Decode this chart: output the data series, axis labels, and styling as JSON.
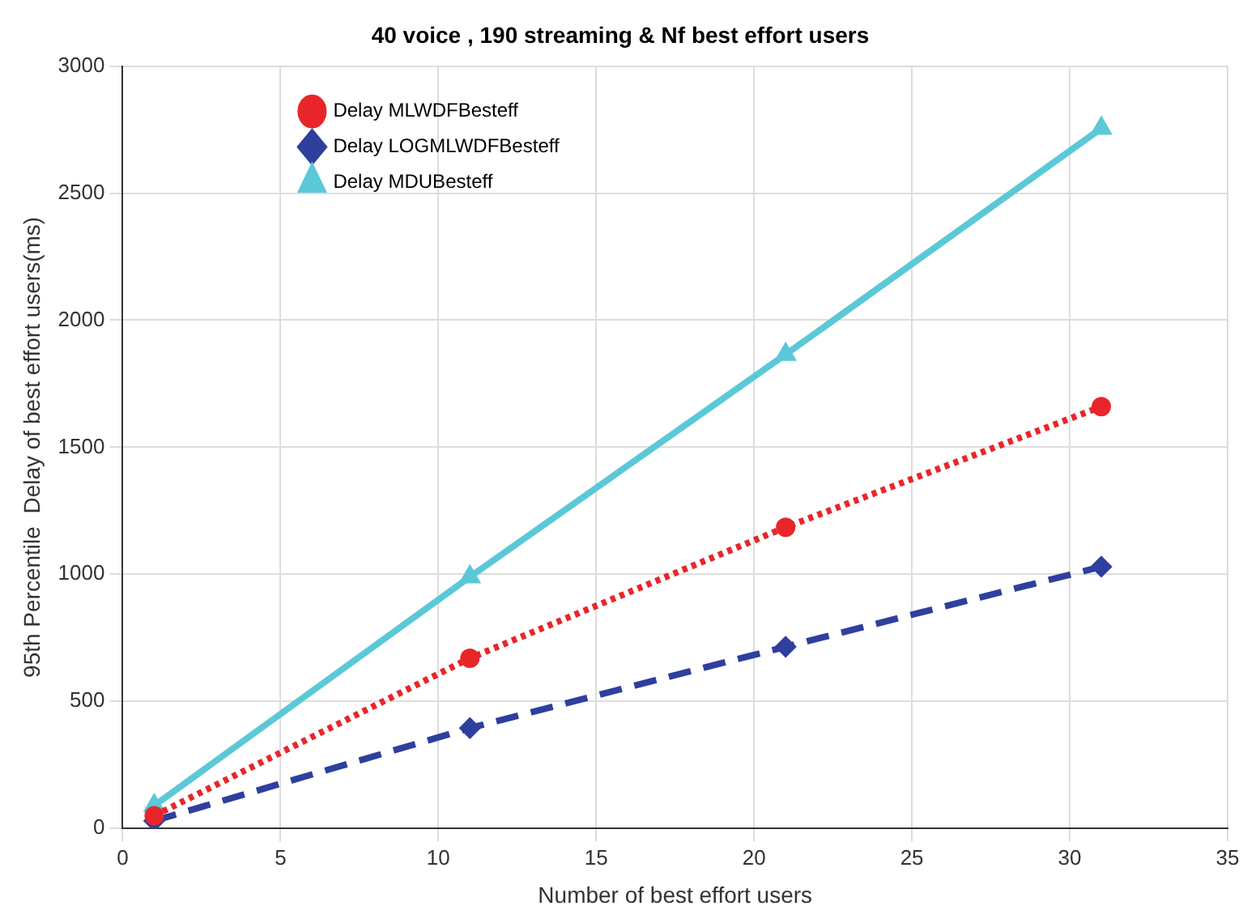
{
  "chart_data": {
    "type": "line",
    "title": "40 voice , 190 streaming & Nf best effort users",
    "xlabel": "Number of best effort users",
    "ylabel": "95th Percentile  Delay of best effort users(ms)",
    "x": [
      1,
      11,
      21,
      31
    ],
    "series": [
      {
        "name": "Delay MLWDFBesteff",
        "color": "#e8262a",
        "values": [
          50,
          670,
          1185,
          1660
        ],
        "marker": "circle",
        "line_style": "dotted"
      },
      {
        "name": "Delay LOGMLWDFBesteff",
        "color": "#2e3f9e",
        "values": [
          30,
          395,
          715,
          1030
        ],
        "marker": "diamond",
        "line_style": "dashed"
      },
      {
        "name": "Delay MDUBesteff",
        "color": "#5bc8d8",
        "values": [
          90,
          990,
          1865,
          2755
        ],
        "marker": "triangle",
        "line_style": "solid"
      }
    ],
    "xlim": [
      0,
      35
    ],
    "xticks": [
      0,
      5,
      10,
      15,
      20,
      25,
      30,
      35
    ],
    "ylim": [
      0,
      3000
    ],
    "yticks": [
      0,
      500,
      1000,
      1500,
      2000,
      2500,
      3000
    ],
    "grid": true,
    "legend": "top left"
  }
}
